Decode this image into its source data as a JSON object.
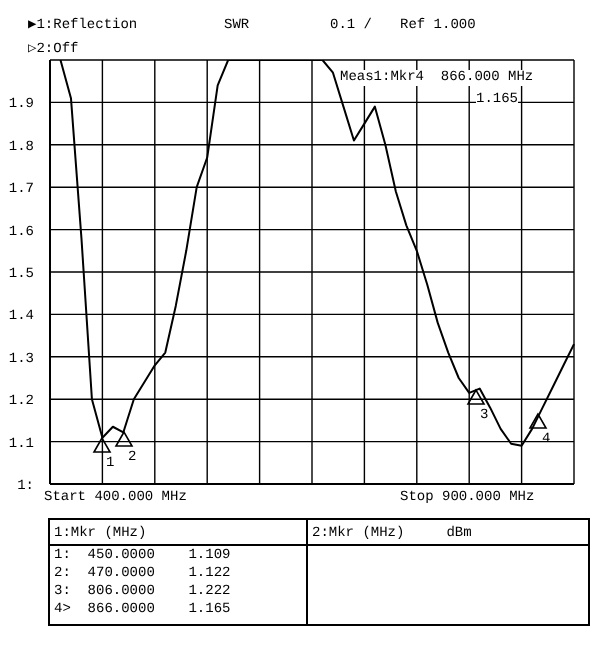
{
  "chart_data": {
    "type": "line",
    "categories": [
      null,
      null,
      null,
      null,
      null,
      null,
      null,
      null,
      null,
      null,
      null,
      null,
      null,
      null,
      null,
      null,
      null,
      null,
      null,
      null,
      null,
      null,
      null,
      null,
      null,
      null,
      null,
      null,
      null,
      null,
      null,
      null,
      null,
      null,
      null,
      null,
      null,
      null,
      null,
      null,
      null,
      null,
      null,
      null,
      null,
      null,
      null,
      null,
      null,
      null,
      null
    ],
    "series": [
      {
        "color": "#000000",
        "values": [
          null,
          2.0,
          1.91,
          1.58,
          1.2,
          1.109,
          1.135,
          1.122,
          1.2,
          1.24,
          1.28,
          1.31,
          1.42,
          1.55,
          1.7,
          1.77,
          1.94,
          2.0,
          2.0,
          2.0,
          2.0,
          2.0,
          2.0,
          2.0,
          2.0,
          2.0,
          2.0,
          1.97,
          1.89,
          1.81,
          1.85,
          1.89,
          1.8,
          1.69,
          1.61,
          1.55,
          1.47,
          1.38,
          1.31,
          1.25,
          1.215,
          1.225,
          1.18,
          1.13,
          1.095,
          1.09,
          1.13,
          1.18,
          1.23,
          1.28,
          1.33
        ]
      }
    ],
    "ylim": [
      1,
      2
    ],
    "yticks": [
      {
        "value": 1,
        "label": "1:"
      },
      1.1,
      1.2,
      1.3,
      1.4,
      1.5,
      1.6,
      1.7,
      1.8,
      1.9,
      {
        "value": 2,
        "label": null
      }
    ],
    "tick_labels": "y",
    "grid": true,
    "marker": "none",
    "line_style": "solid",
    "annotations": [
      "▶1:Reflection",
      "SWR",
      "0.1 /",
      "Ref 1.000",
      "▷2:Off",
      "Meas1:Mkr4  866.000 MHz",
      "1.165",
      "Start 400.000 MHz",
      "Stop 900.000 MHz",
      "1:Mkr (MHz)",
      "1:  450.0000    1.109",
      "2:  470.0000    1.122",
      "3:  806.0000    1.222",
      "4>  866.0000    1.165",
      "2:Mkr (MHz)     dBm",
      "1",
      "2",
      "3",
      "4"
    ]
  }
}
